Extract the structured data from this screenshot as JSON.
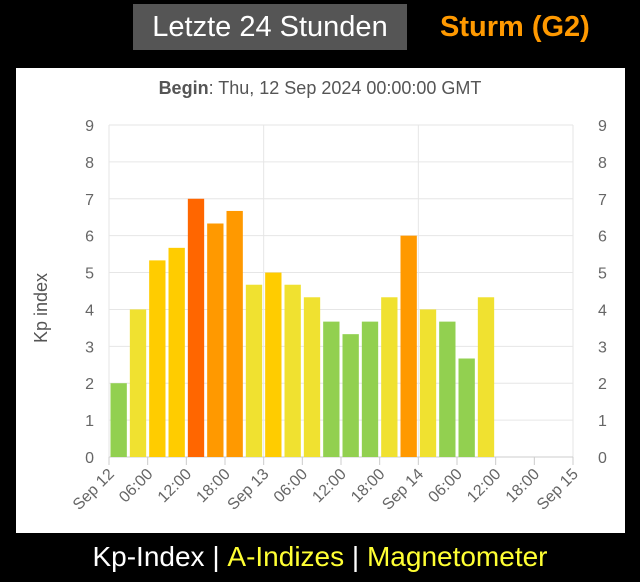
{
  "header": {
    "title": "Letzte 24 Stunden",
    "status": "Sturm (G2)"
  },
  "chart_data": {
    "type": "bar",
    "title_prefix": "Begin",
    "title_value": ": Thu, 12 Sep 2024 00:00:00 GMT",
    "ylabel": "Kp index",
    "ylim": [
      0,
      9
    ],
    "y_ticks": [
      "0",
      "1",
      "2",
      "3",
      "4",
      "5",
      "6",
      "7",
      "8",
      "9"
    ],
    "x_tick_labels": [
      "Sep 12",
      "06:00",
      "12:00",
      "18:00",
      "Sep 13",
      "06:00",
      "12:00",
      "18:00",
      "Sep 14",
      "06:00",
      "12:00",
      "18:00",
      "Sep 15"
    ],
    "x_range_hours": [
      0,
      72
    ],
    "bar_interval_hours": 3,
    "values": [
      2.0,
      4.0,
      5.33,
      5.67,
      7.0,
      6.33,
      6.67,
      4.67,
      5.0,
      4.67,
      4.33,
      3.67,
      3.33,
      3.67,
      4.33,
      6.0,
      4.0,
      3.67,
      2.67,
      4.33
    ],
    "colors": {
      "quiet": "#92d050",
      "active": "#f0e130",
      "minor_storm": "#ffcc00",
      "moderate_storm": "#ff9900",
      "strong_storm": "#ff6600"
    },
    "status_colors": {
      "title_bg": "#555555",
      "status": "#ff9900"
    }
  },
  "footer": {
    "kp_index": "Kp-Index",
    "separator": " | ",
    "a_indices": "A-Indizes",
    "magnetometer": "Magnetometer"
  }
}
